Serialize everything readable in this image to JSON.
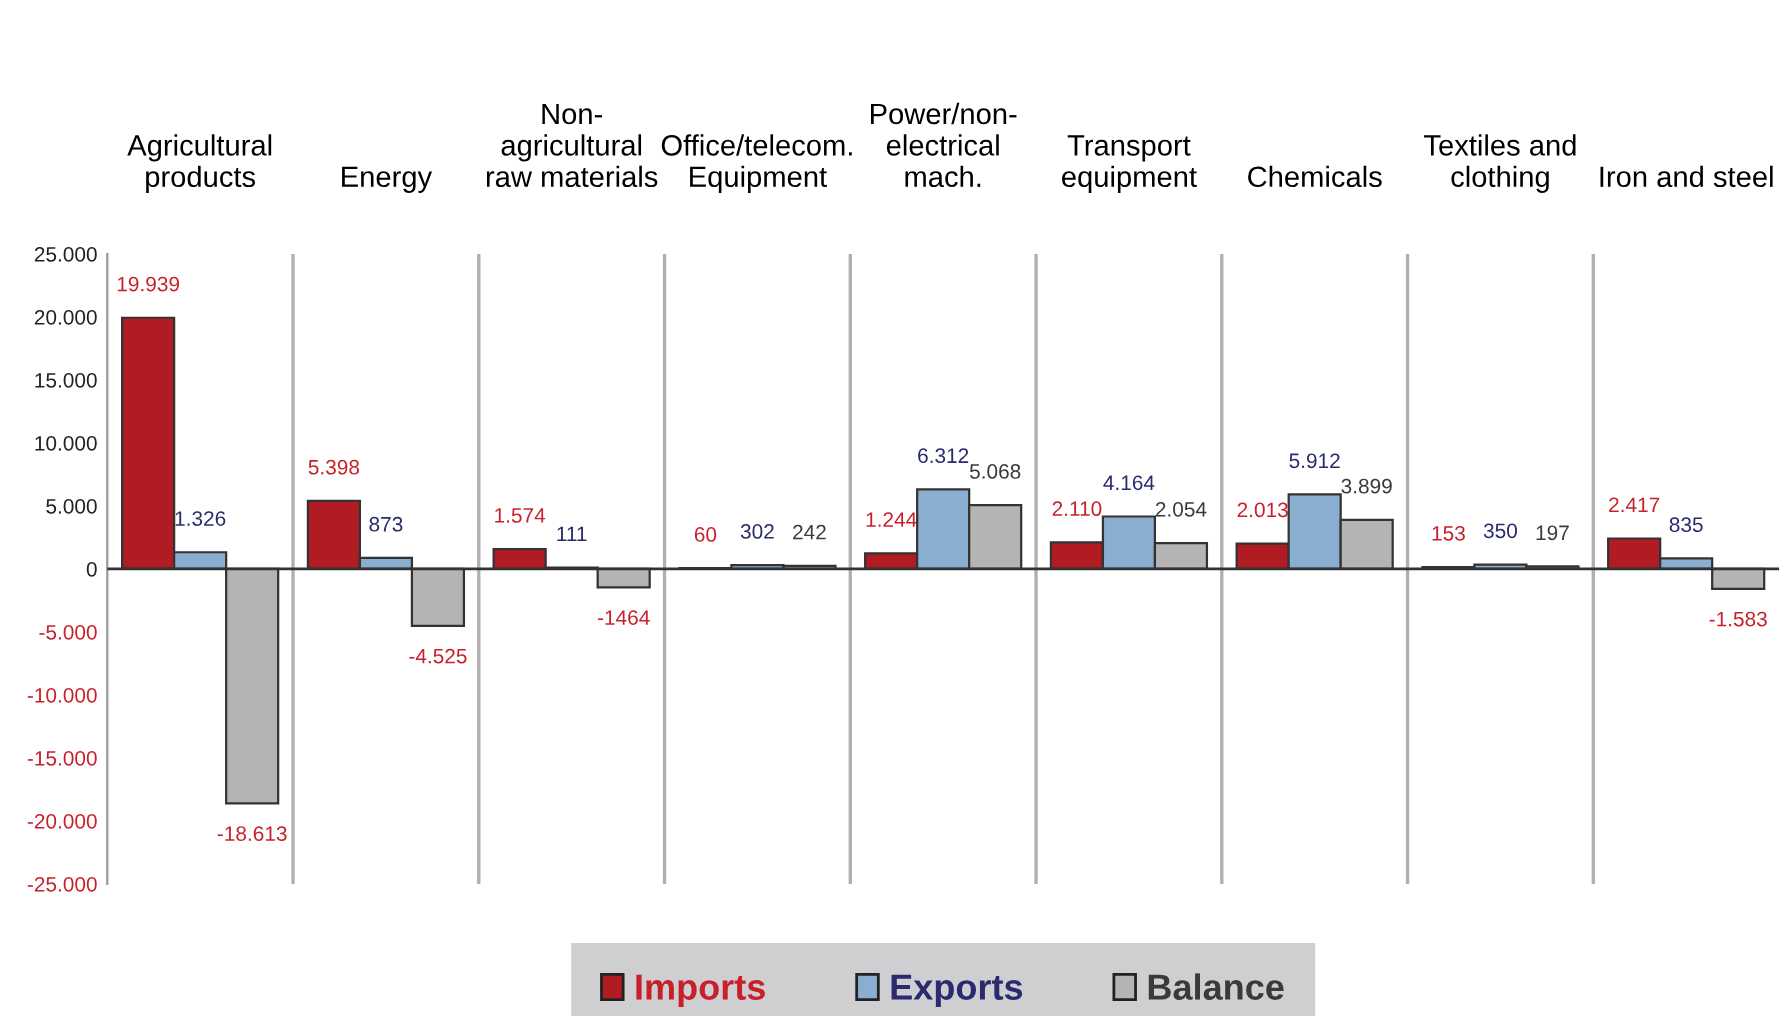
{
  "chart_data": {
    "type": "bar",
    "categories": [
      "Agricultural\nproducts",
      "Energy",
      "Non-\nagricultural\nraw materials",
      "Office/telecom.\nEquipment",
      "Power/non-\nelectrical\nmach.",
      "Transport\nequipment",
      "Chemicals",
      "Textiles and\nclothing",
      "Iron and steel"
    ],
    "series": [
      {
        "name": "Imports",
        "color": "#b01c22",
        "values": [
          19939,
          5398,
          1574,
          60,
          1244,
          2110,
          2013,
          153,
          2417
        ],
        "value_labels": [
          "19.939",
          "5.398",
          "1.574",
          "60",
          "1.244",
          "2.110",
          "2.013",
          "153",
          "2.417"
        ]
      },
      {
        "name": "Exports",
        "color": "#8aaed0",
        "values": [
          1326,
          873,
          111,
          302,
          6312,
          4164,
          5912,
          350,
          835
        ],
        "value_labels": [
          "1.326",
          "873",
          "111",
          "302",
          "6.312",
          "4.164",
          "5.912",
          "350",
          "835"
        ]
      },
      {
        "name": "Balance",
        "color": "#b4b4b4",
        "values": [
          -18613,
          -4525,
          -1464,
          242,
          5068,
          2054,
          3899,
          197,
          -1583
        ],
        "value_labels": [
          "-18.613",
          "-4.525",
          "-1464",
          "242",
          "5.068",
          "2.054",
          "3.899",
          "197",
          "-1.583"
        ]
      }
    ],
    "ylim": [
      -25000,
      25000
    ],
    "yticks": [
      {
        "value": -25000,
        "label": "-25.000"
      },
      {
        "value": -20000,
        "label": "-20.000"
      },
      {
        "value": -15000,
        "label": "-15.000"
      },
      {
        "value": -10000,
        "label": "-10.000"
      },
      {
        "value": -5000,
        "label": "-5.000"
      },
      0,
      {
        "value": 5000,
        "label": "5.000"
      },
      {
        "value": 10000,
        "label": "10.000"
      },
      {
        "value": 15000,
        "label": "15.000"
      },
      {
        "value": 20000,
        "label": "20.000"
      },
      {
        "value": 25000,
        "label": "25.000"
      }
    ],
    "grid": "x",
    "legend": "bottom"
  }
}
